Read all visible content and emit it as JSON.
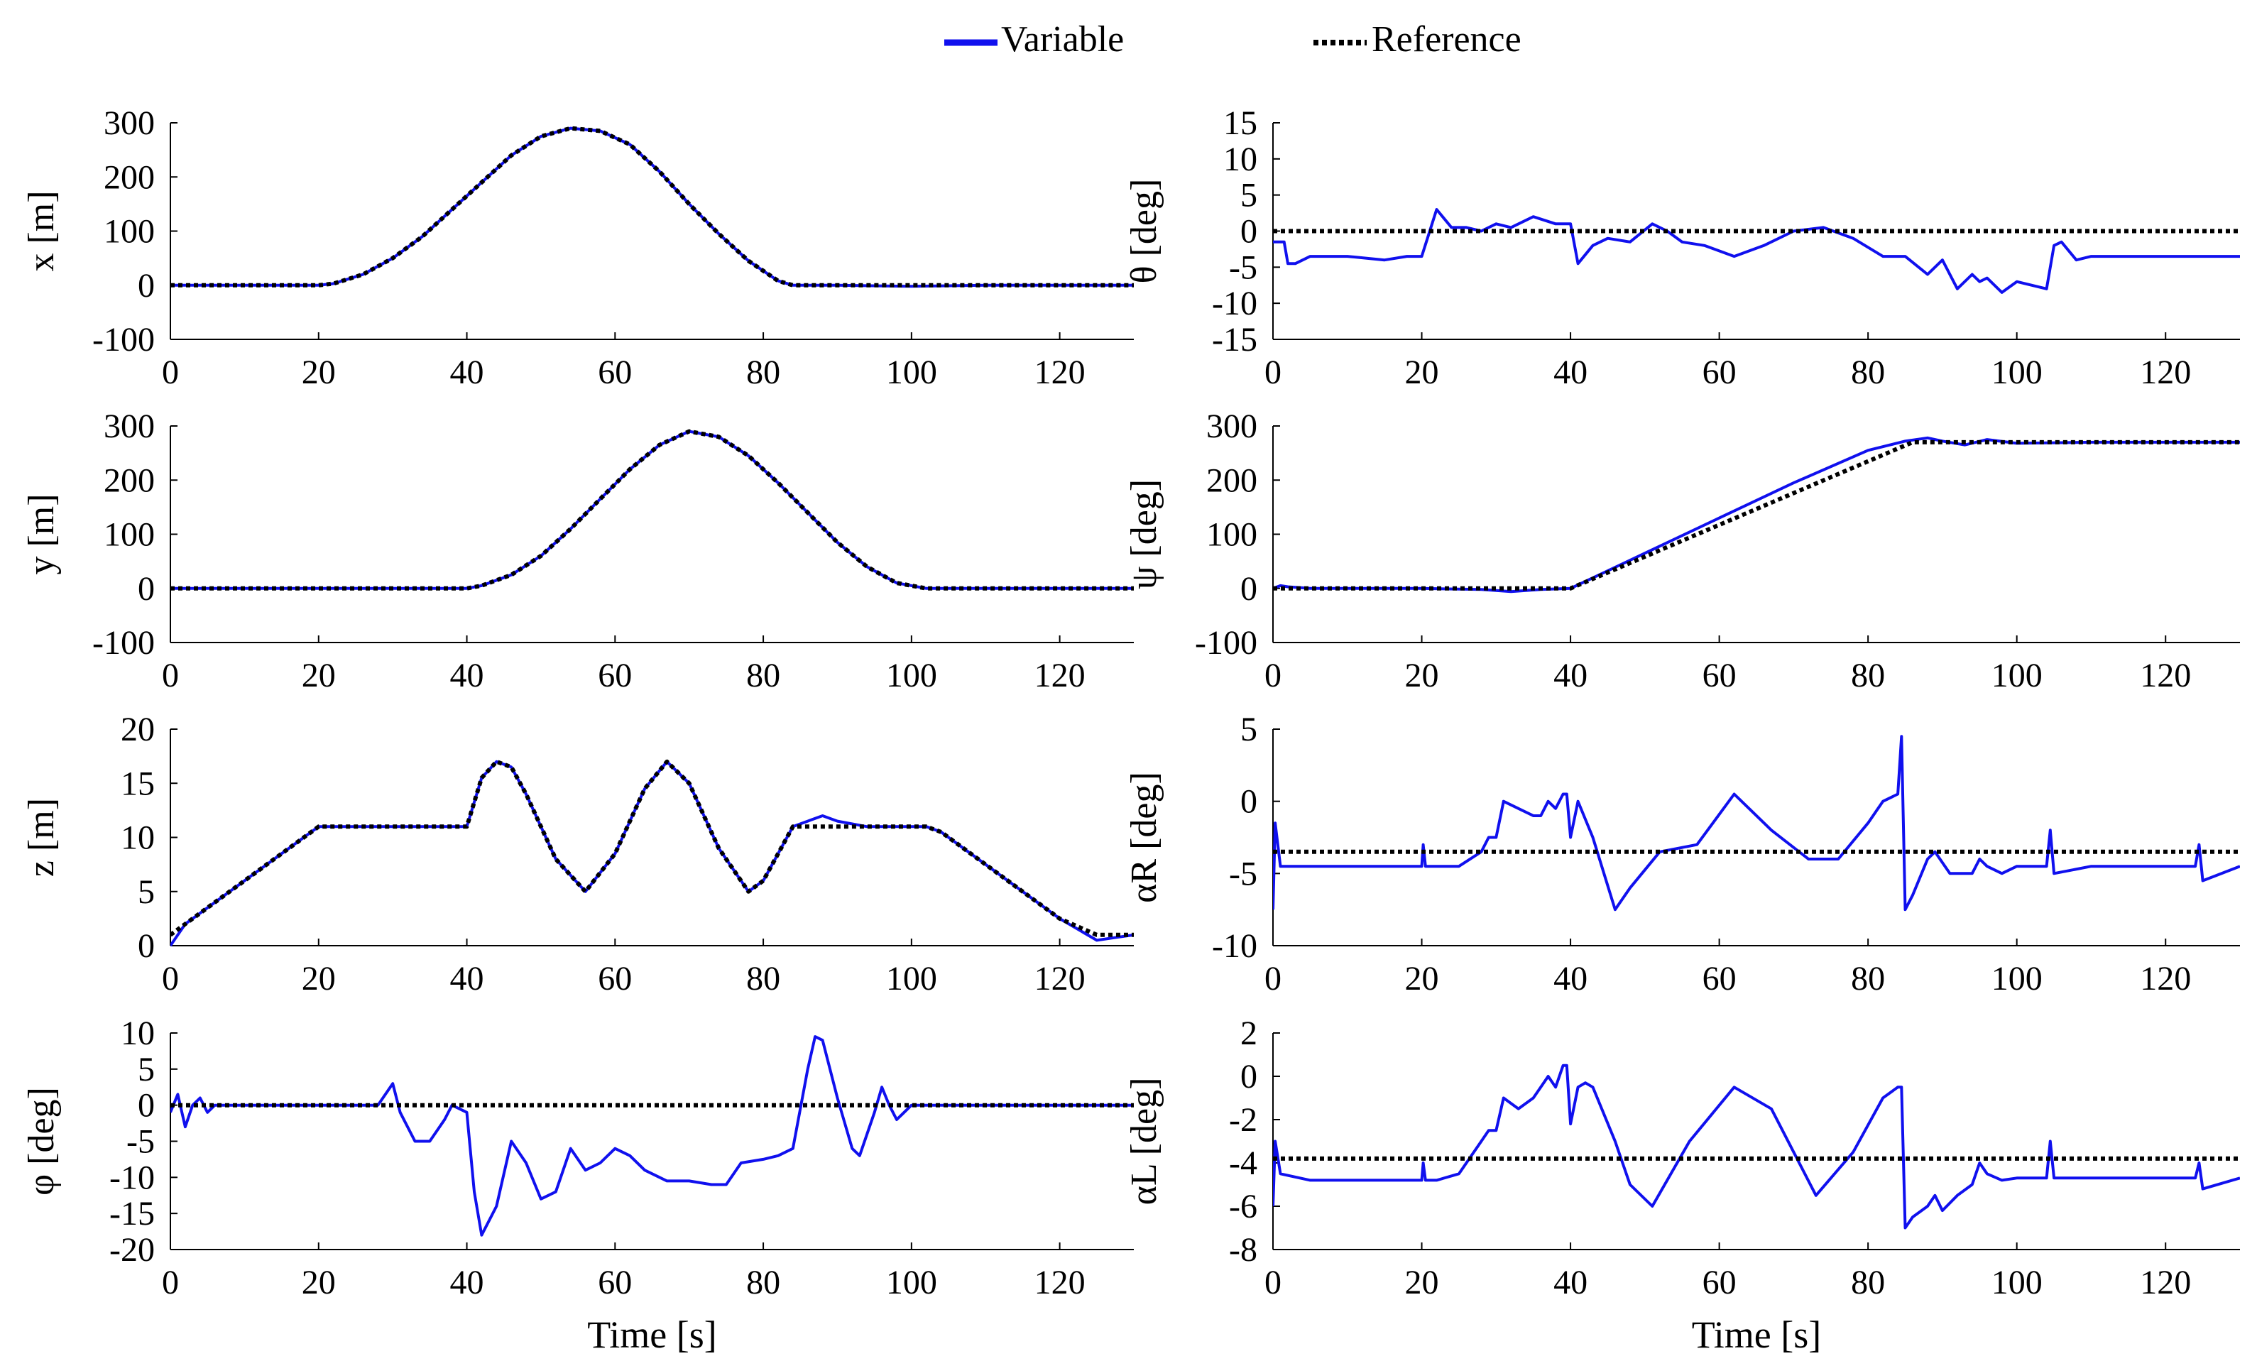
{
  "legend": {
    "variable_label": "Variable",
    "reference_label": "Reference"
  },
  "colors": {
    "variable": "#1010ee",
    "reference": "#000000"
  },
  "chart_data": [
    {
      "id": "x",
      "type": "line",
      "ylabel": "x [m]",
      "xlabel": "",
      "xlim": [
        0,
        130
      ],
      "ylim": [
        -100,
        300
      ],
      "xticks": [
        0,
        20,
        40,
        60,
        80,
        100,
        120
      ],
      "yticks": [
        -100,
        0,
        100,
        200,
        300
      ],
      "series": [
        {
          "name": "Variable",
          "x": [
            0,
            10,
            20,
            22,
            26,
            30,
            34,
            38,
            42,
            46,
            50,
            54,
            58,
            62,
            66,
            70,
            74,
            78,
            82,
            84,
            90,
            100,
            110,
            120,
            130
          ],
          "y": [
            0,
            0,
            0,
            3,
            20,
            50,
            90,
            140,
            190,
            240,
            275,
            290,
            285,
            260,
            210,
            150,
            95,
            45,
            8,
            0,
            0,
            -2,
            0,
            0,
            0
          ]
        },
        {
          "name": "Reference",
          "x": [
            0,
            10,
            20,
            22,
            26,
            30,
            34,
            38,
            42,
            46,
            50,
            54,
            58,
            62,
            66,
            70,
            74,
            78,
            82,
            84,
            90,
            100,
            110,
            120,
            130
          ],
          "y": [
            0,
            0,
            0,
            3,
            20,
            50,
            90,
            140,
            190,
            240,
            275,
            290,
            285,
            260,
            210,
            150,
            95,
            45,
            8,
            0,
            0,
            0,
            0,
            0,
            0
          ]
        }
      ]
    },
    {
      "id": "theta",
      "type": "line",
      "ylabel": "θ [deg]",
      "xlabel": "",
      "xlim": [
        0,
        130
      ],
      "ylim": [
        -15,
        15
      ],
      "xticks": [
        0,
        20,
        40,
        60,
        80,
        100,
        120
      ],
      "yticks": [
        -15,
        -10,
        -5,
        0,
        5,
        10,
        15
      ],
      "series": [
        {
          "name": "Variable",
          "x": [
            0,
            1.5,
            2,
            3,
            5,
            10,
            15,
            18,
            20,
            22,
            24,
            26,
            28,
            30,
            32,
            35,
            38,
            40,
            41,
            43,
            45,
            48,
            51,
            53,
            55,
            58,
            62,
            66,
            70,
            74,
            78,
            82,
            85,
            88,
            90,
            92,
            94,
            95,
            96,
            98,
            100,
            104,
            105,
            106,
            108,
            110,
            115,
            120,
            125,
            130
          ],
          "y": [
            -1.5,
            -1.5,
            -4.5,
            -4.5,
            -3.5,
            -3.5,
            -4,
            -3.5,
            -3.5,
            3,
            0.5,
            0.5,
            0,
            1,
            0.5,
            2,
            1,
            1,
            -4.5,
            -2,
            -1,
            -1.5,
            1,
            0,
            -1.5,
            -2,
            -3.5,
            -2,
            0,
            0.5,
            -1,
            -3.5,
            -3.5,
            -6,
            -4,
            -8,
            -6,
            -7,
            -6.5,
            -8.5,
            -7,
            -8,
            -2,
            -1.5,
            -4,
            -3.5,
            -3.5,
            -3.5,
            -3.5,
            -3.5
          ]
        },
        {
          "name": "Reference",
          "x": [
            0,
            130
          ],
          "y": [
            0,
            0
          ]
        }
      ]
    },
    {
      "id": "y",
      "type": "line",
      "ylabel": "y [m]",
      "xlabel": "",
      "xlim": [
        0,
        130
      ],
      "ylim": [
        -100,
        300
      ],
      "xticks": [
        0,
        20,
        40,
        60,
        80,
        100,
        120
      ],
      "yticks": [
        -100,
        0,
        100,
        200,
        300
      ],
      "series": [
        {
          "name": "Variable",
          "x": [
            0,
            20,
            40,
            42,
            46,
            50,
            54,
            58,
            62,
            66,
            70,
            74,
            78,
            82,
            86,
            90,
            94,
            98,
            102,
            110,
            120,
            130
          ],
          "y": [
            0,
            0,
            0,
            5,
            25,
            60,
            110,
            165,
            220,
            265,
            290,
            280,
            245,
            195,
            140,
            85,
            40,
            10,
            0,
            0,
            0,
            0
          ]
        },
        {
          "name": "Reference",
          "x": [
            0,
            20,
            40,
            42,
            46,
            50,
            54,
            58,
            62,
            66,
            70,
            74,
            78,
            82,
            86,
            90,
            94,
            98,
            102,
            110,
            120,
            130
          ],
          "y": [
            0,
            0,
            0,
            5,
            25,
            60,
            110,
            165,
            220,
            265,
            290,
            280,
            245,
            195,
            140,
            85,
            40,
            10,
            0,
            0,
            0,
            0
          ]
        }
      ]
    },
    {
      "id": "psi",
      "type": "line",
      "ylabel": "ψ [deg]",
      "xlabel": "",
      "xlim": [
        0,
        130
      ],
      "ylim": [
        -100,
        300
      ],
      "xticks": [
        0,
        20,
        40,
        60,
        80,
        100,
        120
      ],
      "yticks": [
        -100,
        0,
        100,
        200,
        300
      ],
      "series": [
        {
          "name": "Variable",
          "x": [
            0,
            1,
            2,
            5,
            10,
            20,
            28,
            32,
            36,
            40,
            50,
            60,
            70,
            80,
            85,
            88,
            90,
            93,
            96,
            100,
            110,
            120,
            130
          ],
          "y": [
            0,
            5,
            3,
            0,
            0,
            0,
            -2,
            -6,
            -2,
            0,
            65,
            130,
            195,
            255,
            272,
            278,
            272,
            265,
            275,
            268,
            270,
            270,
            270
          ]
        },
        {
          "name": "Reference",
          "x": [
            0,
            40,
            86,
            130
          ],
          "y": [
            0,
            0,
            270,
            270
          ]
        }
      ]
    },
    {
      "id": "z",
      "type": "line",
      "ylabel": "z [m]",
      "xlabel": "",
      "xlim": [
        0,
        130
      ],
      "ylim": [
        0,
        20
      ],
      "xticks": [
        0,
        20,
        40,
        60,
        80,
        100,
        120
      ],
      "yticks": [
        0,
        5,
        10,
        15,
        20
      ],
      "series": [
        {
          "name": "Variable",
          "x": [
            0,
            2,
            5,
            10,
            15,
            20,
            22,
            26,
            30,
            34,
            38,
            40,
            42,
            44,
            46,
            48,
            52,
            56,
            60,
            64,
            67,
            70,
            74,
            78,
            80,
            84,
            86,
            88,
            90,
            94,
            98,
            102,
            104,
            110,
            115,
            120,
            125,
            128,
            130
          ],
          "y": [
            0,
            2,
            3.5,
            6,
            8.5,
            11,
            11,
            11,
            11,
            11,
            11,
            11,
            15.5,
            17,
            16.5,
            14,
            8,
            5,
            8.5,
            14.5,
            17,
            15,
            9,
            5,
            6,
            11,
            11.5,
            12,
            11.5,
            11,
            11,
            11,
            10.5,
            7.5,
            5,
            2.5,
            0.5,
            0.8,
            1
          ]
        },
        {
          "name": "Reference",
          "x": [
            0,
            2,
            5,
            10,
            15,
            20,
            22,
            26,
            30,
            34,
            38,
            40,
            42,
            44,
            46,
            48,
            52,
            56,
            60,
            64,
            67,
            70,
            74,
            78,
            80,
            84,
            86,
            88,
            90,
            94,
            98,
            102,
            104,
            110,
            115,
            120,
            125,
            128,
            130
          ],
          "y": [
            1,
            2,
            3.5,
            6,
            8.5,
            11,
            11,
            11,
            11,
            11,
            11,
            11,
            15.5,
            17,
            16.5,
            14,
            8,
            5,
            8.5,
            14.5,
            17,
            15,
            9,
            5,
            6,
            11,
            11,
            11,
            11,
            11,
            11,
            11,
            10.5,
            7.5,
            5,
            2.5,
            1,
            1,
            1
          ]
        }
      ]
    },
    {
      "id": "alphaR",
      "type": "line",
      "ylabel": "αR [deg]",
      "xlabel": "",
      "xlim": [
        0,
        130
      ],
      "ylim": [
        -10,
        5
      ],
      "xticks": [
        0,
        20,
        40,
        60,
        80,
        100,
        120
      ],
      "yticks": [
        -10,
        -5,
        0,
        5
      ],
      "series": [
        {
          "name": "Variable",
          "x": [
            0,
            0.3,
            1,
            5,
            10,
            20,
            20.2,
            20.5,
            22,
            25,
            28,
            29,
            30,
            31,
            33,
            35,
            36,
            37,
            38,
            39,
            39.5,
            40,
            41,
            43,
            46,
            48,
            52,
            57,
            62,
            67,
            72,
            76,
            80,
            82,
            84,
            84.5,
            85,
            86,
            88,
            89,
            91,
            94,
            95,
            96,
            98,
            100,
            103,
            104,
            104.5,
            105,
            110,
            115,
            120,
            123,
            124,
            124.5,
            125,
            130
          ],
          "y": [
            -7.5,
            -1.5,
            -4.5,
            -4.5,
            -4.5,
            -4.5,
            -3,
            -4.5,
            -4.5,
            -4.5,
            -3.5,
            -2.5,
            -2.5,
            0,
            -0.5,
            -1,
            -1,
            0,
            -0.5,
            0.5,
            0.5,
            -2.5,
            0,
            -2.5,
            -7.5,
            -6,
            -3.5,
            -3,
            0.5,
            -2,
            -4,
            -4,
            -1.5,
            0,
            0.5,
            4.5,
            -7.5,
            -6.5,
            -4,
            -3.5,
            -5,
            -5,
            -4,
            -4.5,
            -5,
            -4.5,
            -4.5,
            -4.5,
            -2,
            -5,
            -4.5,
            -4.5,
            -4.5,
            -4.5,
            -4.5,
            -3,
            -5.5,
            -4.5
          ]
        },
        {
          "name": "Reference",
          "x": [
            0,
            130
          ],
          "y": [
            -3.5,
            -3.5
          ]
        }
      ]
    },
    {
      "id": "phi",
      "type": "line",
      "ylabel": "φ [deg]",
      "xlabel": "Time [s]",
      "xlim": [
        0,
        130
      ],
      "ylim": [
        -20,
        10
      ],
      "xticks": [
        0,
        20,
        40,
        60,
        80,
        100,
        120
      ],
      "yticks": [
        -20,
        -15,
        -10,
        -5,
        0,
        5,
        10
      ],
      "series": [
        {
          "name": "Variable",
          "x": [
            0,
            1,
            2,
            3,
            4,
            5,
            6,
            7,
            8,
            10,
            15,
            20,
            25,
            28,
            30,
            31,
            33,
            35,
            37,
            38,
            40,
            41,
            42,
            44,
            46,
            48,
            50,
            52,
            54,
            56,
            58,
            60,
            62,
            64,
            67,
            70,
            73,
            75,
            77,
            80,
            82,
            84,
            86,
            87,
            88,
            90,
            92,
            93,
            95,
            96,
            97,
            98,
            100,
            105,
            110,
            115,
            120,
            125,
            130
          ],
          "y": [
            -1,
            1.5,
            -3,
            0,
            1,
            -1,
            0,
            0,
            0,
            0,
            0,
            0,
            0,
            0,
            3,
            -1,
            -5,
            -5,
            -2,
            0,
            -1,
            -12,
            -18,
            -14,
            -5,
            -8,
            -13,
            -12,
            -6,
            -9,
            -8,
            -6,
            -7,
            -9,
            -10.5,
            -10.5,
            -11,
            -11,
            -8,
            -7.5,
            -7,
            -6,
            5,
            9.5,
            9,
            1,
            -6,
            -7,
            -1,
            2.5,
            0,
            -2,
            0,
            0,
            0,
            0,
            0,
            0,
            0
          ]
        },
        {
          "name": "Reference",
          "x": [
            0,
            130
          ],
          "y": [
            0,
            0
          ]
        }
      ]
    },
    {
      "id": "alphaL",
      "type": "line",
      "ylabel": "αL [deg]",
      "xlabel": "Time [s]",
      "xlim": [
        0,
        130
      ],
      "ylim": [
        -8,
        2
      ],
      "xticks": [
        0,
        20,
        40,
        60,
        80,
        100,
        120
      ],
      "yticks": [
        -8,
        -6,
        -4,
        -2,
        0,
        2
      ],
      "series": [
        {
          "name": "Variable",
          "x": [
            0,
            0.3,
            1,
            5,
            10,
            20,
            20.2,
            20.5,
            22,
            25,
            28,
            29,
            30,
            31,
            33,
            35,
            36,
            37,
            38,
            39,
            39.5,
            40,
            41,
            42,
            43,
            46,
            48,
            51,
            56,
            62,
            67,
            73,
            78,
            82,
            84,
            84.5,
            85,
            86,
            88,
            89,
            90,
            92,
            94,
            95,
            96,
            98,
            100,
            103,
            104,
            104.5,
            105,
            110,
            115,
            120,
            123,
            124,
            124.5,
            125,
            130
          ],
          "y": [
            -6,
            -3,
            -4.5,
            -4.8,
            -4.8,
            -4.8,
            -4,
            -4.8,
            -4.8,
            -4.5,
            -3,
            -2.5,
            -2.5,
            -1,
            -1.5,
            -1,
            -0.5,
            0,
            -0.5,
            0.5,
            0.5,
            -2.2,
            -0.5,
            -0.3,
            -0.5,
            -3,
            -5,
            -6,
            -3,
            -0.5,
            -1.5,
            -5.5,
            -3.5,
            -1,
            -0.5,
            -0.5,
            -7,
            -6.5,
            -6,
            -5.5,
            -6.2,
            -5.5,
            -5,
            -4,
            -4.5,
            -4.8,
            -4.7,
            -4.7,
            -4.7,
            -3,
            -4.7,
            -4.7,
            -4.7,
            -4.7,
            -4.7,
            -4.7,
            -4,
            -5.2,
            -4.7
          ]
        },
        {
          "name": "Reference",
          "x": [
            0,
            130
          ],
          "y": [
            -3.8,
            -3.8
          ]
        }
      ]
    }
  ]
}
